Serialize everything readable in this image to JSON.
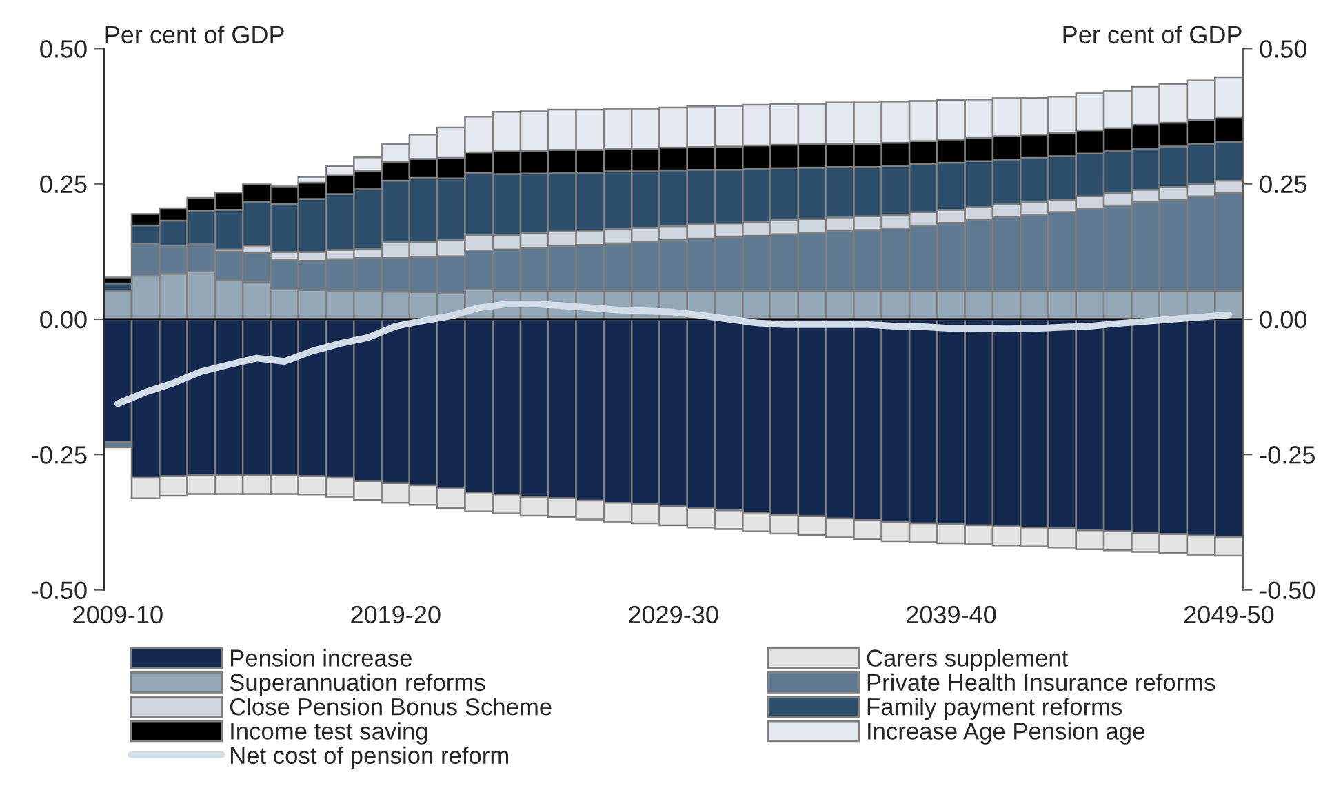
{
  "chart_data": {
    "type": "bar",
    "stacked": true,
    "ylabel": "Per cent of GDP",
    "y2label": "Per cent of GDP",
    "categories": [
      "2009-10",
      null,
      null,
      null,
      null,
      null,
      null,
      null,
      null,
      null,
      "2019-20",
      null,
      null,
      null,
      null,
      null,
      null,
      null,
      null,
      null,
      "2029-30",
      null,
      null,
      null,
      null,
      null,
      null,
      null,
      null,
      null,
      "2039-40",
      null,
      null,
      null,
      null,
      null,
      null,
      null,
      null,
      null,
      "2049-50"
    ],
    "ylim": [
      -0.5,
      0.5
    ],
    "yticks": [
      {
        "value": -0.5,
        "label": "-0.50"
      },
      {
        "value": -0.25,
        "label": "-0.25"
      },
      {
        "value": 0,
        "label": "0.00"
      },
      {
        "value": 0.25,
        "label": "0.25"
      },
      {
        "value": 0.5,
        "label": "0.50"
      }
    ],
    "y2lim": [
      -0.5,
      0.5
    ],
    "y2ticks": [
      {
        "value": -0.5,
        "label": "-0.50"
      },
      {
        "value": -0.25,
        "label": "-0.25"
      },
      {
        "value": 0,
        "label": "0.00"
      },
      {
        "value": 0.25,
        "label": "0.25"
      },
      {
        "value": 0.5,
        "label": "0.50"
      }
    ],
    "grid": false,
    "legend": "bottom",
    "ref_lines": [
      {
        "axis": "y",
        "value": 0,
        "color": "#000000"
      }
    ],
    "series": [
      {
        "name": "Pension increase",
        "color": "#14294f",
        "values": [
          -0.227,
          -0.293,
          -0.29,
          -0.288,
          -0.289,
          -0.289,
          -0.289,
          -0.29,
          -0.293,
          -0.299,
          -0.303,
          -0.307,
          -0.313,
          -0.32,
          -0.324,
          -0.328,
          -0.331,
          -0.335,
          -0.339,
          -0.342,
          -0.346,
          -0.35,
          -0.353,
          -0.357,
          -0.361,
          -0.364,
          -0.368,
          -0.371,
          -0.375,
          -0.377,
          -0.379,
          -0.381,
          -0.383,
          -0.385,
          -0.387,
          -0.39,
          -0.392,
          -0.395,
          -0.397,
          -0.4,
          -0.402
        ]
      },
      {
        "name": "Carers supplement",
        "color": "#e5e5e5",
        "values": [
          0,
          -0.038,
          -0.036,
          -0.035,
          -0.034,
          -0.034,
          -0.034,
          -0.034,
          -0.035,
          -0.035,
          -0.036,
          -0.036,
          -0.036,
          -0.035,
          -0.035,
          -0.035,
          -0.035,
          -0.035,
          -0.035,
          -0.035,
          -0.035,
          -0.035,
          -0.035,
          -0.035,
          -0.035,
          -0.035,
          -0.035,
          -0.035,
          -0.035,
          -0.035,
          -0.035,
          -0.035,
          -0.035,
          -0.035,
          -0.035,
          -0.035,
          -0.035,
          -0.035,
          -0.035,
          -0.035,
          -0.035
        ]
      },
      {
        "name": "Superannuation reforms",
        "color": "#95a8b7",
        "values": [
          0.053,
          0.08,
          0.084,
          0.088,
          0.072,
          0.069,
          0.055,
          0.054,
          0.053,
          0.053,
          0.051,
          0.05,
          0.048,
          0.055,
          0.052,
          0.052,
          0.052,
          0.052,
          0.052,
          0.052,
          0.052,
          0.052,
          0.052,
          0.052,
          0.052,
          0.052,
          0.052,
          0.052,
          0.052,
          0.052,
          0.052,
          0.052,
          0.052,
          0.052,
          0.052,
          0.052,
          0.052,
          0.052,
          0.052,
          0.052,
          0.052
        ]
      },
      {
        "name": "Private Health Insurance reforms",
        "color": "#5f7a91",
        "values": [
          -0.01,
          0.059,
          0.051,
          0.05,
          0.053,
          0.053,
          0.055,
          0.054,
          0.058,
          0.06,
          0.062,
          0.065,
          0.068,
          0.072,
          0.077,
          0.08,
          0.083,
          0.085,
          0.088,
          0.091,
          0.094,
          0.097,
          0.099,
          0.102,
          0.105,
          0.108,
          0.111,
          0.113,
          0.116,
          0.121,
          0.126,
          0.131,
          0.136,
          0.141,
          0.146,
          0.152,
          0.158,
          0.164,
          0.169,
          0.175,
          0.181
        ]
      },
      {
        "name": "Close Pension Bonus Scheme",
        "color": "#cfd6df",
        "values": [
          0,
          0,
          0,
          0,
          0.004,
          0.014,
          0.014,
          0.016,
          0.017,
          0.017,
          0.029,
          0.028,
          0.03,
          0.028,
          0.027,
          0.027,
          0.027,
          0.027,
          0.027,
          0.026,
          0.026,
          0.026,
          0.026,
          0.026,
          0.026,
          0.025,
          0.025,
          0.025,
          0.025,
          0.025,
          0.024,
          0.024,
          0.024,
          0.023,
          0.023,
          0.023,
          0.023,
          0.023,
          0.023,
          0.023,
          0.023
        ]
      },
      {
        "name": "Family payment reforms",
        "color": "#2d4f6c",
        "values": [
          0.013,
          0.034,
          0.047,
          0.062,
          0.073,
          0.081,
          0.089,
          0.098,
          0.103,
          0.11,
          0.114,
          0.118,
          0.114,
          0.115,
          0.112,
          0.11,
          0.109,
          0.107,
          0.106,
          0.104,
          0.103,
          0.101,
          0.099,
          0.098,
          0.096,
          0.095,
          0.093,
          0.091,
          0.09,
          0.088,
          0.087,
          0.085,
          0.083,
          0.082,
          0.08,
          0.079,
          0.077,
          0.076,
          0.075,
          0.073,
          0.072
        ]
      },
      {
        "name": "Income test saving",
        "color": "#000000",
        "values": [
          0.011,
          0.021,
          0.023,
          0.024,
          0.032,
          0.032,
          0.032,
          0.03,
          0.034,
          0.034,
          0.035,
          0.035,
          0.038,
          0.038,
          0.042,
          0.042,
          0.042,
          0.042,
          0.042,
          0.042,
          0.042,
          0.042,
          0.043,
          0.043,
          0.043,
          0.043,
          0.043,
          0.043,
          0.043,
          0.043,
          0.043,
          0.043,
          0.043,
          0.043,
          0.043,
          0.043,
          0.043,
          0.044,
          0.044,
          0.045,
          0.045
        ]
      },
      {
        "name": "Increase Age Pension age",
        "color": "#e4eaef",
        "values": [
          0,
          0,
          0,
          0,
          0,
          0,
          0,
          0.011,
          0.018,
          0.025,
          0.032,
          0.045,
          0.056,
          0.066,
          0.073,
          0.073,
          0.074,
          0.074,
          0.074,
          0.074,
          0.074,
          0.075,
          0.075,
          0.075,
          0.075,
          0.075,
          0.076,
          0.076,
          0.076,
          0.074,
          0.073,
          0.071,
          0.07,
          0.068,
          0.067,
          0.068,
          0.069,
          0.07,
          0.071,
          0.073,
          0.074
        ]
      },
      {
        "name": "Net cost of pension reform",
        "type": "line",
        "color": "#d3dde7",
        "values": [
          -0.156,
          -0.135,
          -0.118,
          -0.097,
          -0.084,
          -0.072,
          -0.078,
          -0.059,
          -0.045,
          -0.034,
          -0.013,
          -0.003,
          0.006,
          0.021,
          0.028,
          0.028,
          0.025,
          0.021,
          0.017,
          0.015,
          0.013,
          0.007,
          0.0,
          -0.007,
          -0.01,
          -0.01,
          -0.01,
          -0.01,
          -0.013,
          -0.014,
          -0.017,
          -0.017,
          -0.018,
          -0.017,
          -0.015,
          -0.013,
          -0.008,
          -0.004,
          0.0,
          0.004,
          0.008
        ]
      }
    ]
  }
}
